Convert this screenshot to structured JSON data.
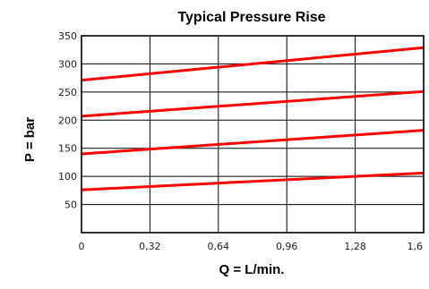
{
  "chart_data": {
    "type": "line",
    "title": "Typical Pressure Rise",
    "xlabel": "Q = L/min.",
    "ylabel": "P = bar",
    "xlim": [
      0,
      1.6
    ],
    "ylim": [
      0,
      350
    ],
    "x_ticks": [
      0,
      0.32,
      0.64,
      0.96,
      1.28,
      1.6
    ],
    "x_tick_labels": [
      "0",
      "0,32",
      "0,64",
      "0,96",
      "1,28",
      "1,6"
    ],
    "y_ticks": [
      50,
      100,
      150,
      200,
      250,
      300,
      350
    ],
    "y_tick_labels": [
      "50",
      "100",
      "150",
      "200",
      "250",
      "300",
      "350"
    ],
    "grid": true,
    "line_color": "#ff0000",
    "series": [
      {
        "x": [
          0,
          1.6
        ],
        "y": [
          76,
          106
        ]
      },
      {
        "x": [
          0,
          1.6
        ],
        "y": [
          140,
          182
        ]
      },
      {
        "x": [
          0,
          1.6
        ],
        "y": [
          207,
          251
        ]
      },
      {
        "x": [
          0,
          1.6
        ],
        "y": [
          271,
          329
        ]
      }
    ]
  }
}
